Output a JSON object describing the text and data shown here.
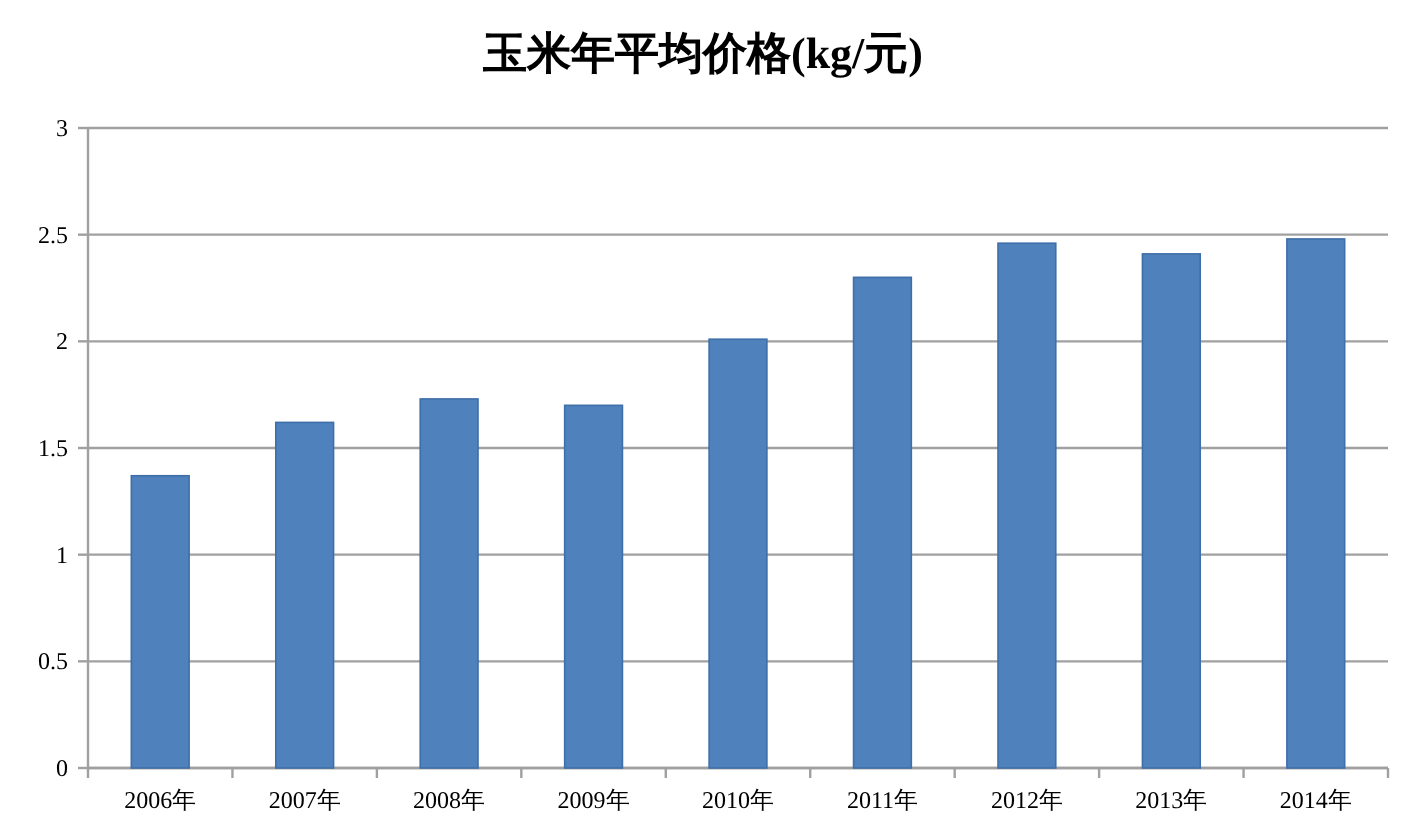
{
  "chart_data": {
    "type": "bar",
    "title": "玉米年平均价格(kg/元)",
    "categories": [
      "2006年",
      "2007年",
      "2008年",
      "2009年",
      "2010年",
      "2011年",
      "2012年",
      "2013年",
      "2014年"
    ],
    "values": [
      1.37,
      1.62,
      1.73,
      1.7,
      2.01,
      2.3,
      2.46,
      2.41,
      2.48
    ],
    "color": "#4f81bd",
    "ylim": [
      0,
      3
    ],
    "yticks": [
      0,
      {
        "value": 0.5,
        "label": "0.5"
      },
      1,
      {
        "value": 1.5,
        "label": "1.5"
      },
      2,
      {
        "value": 2.5,
        "label": "2.5"
      },
      3
    ],
    "grid": "y"
  }
}
